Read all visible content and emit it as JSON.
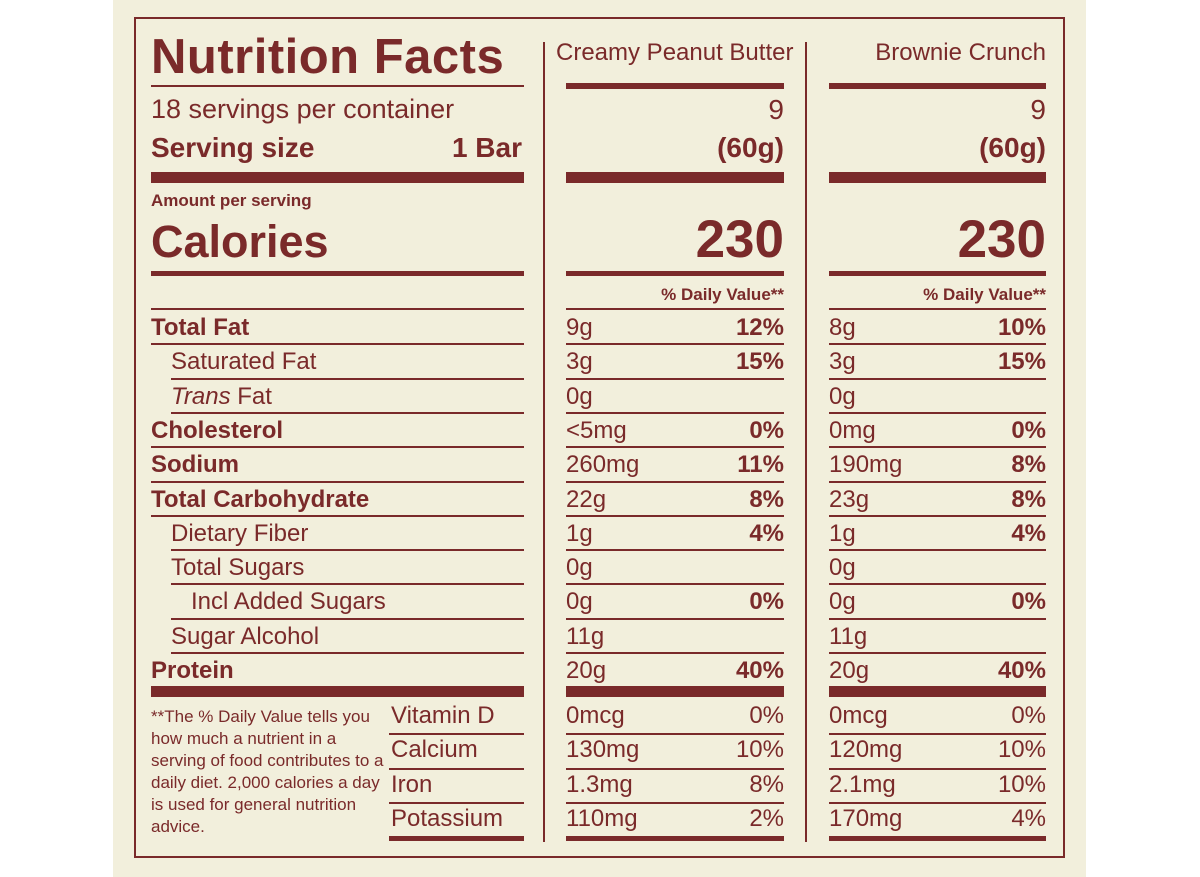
{
  "label": {
    "title": "Nutrition Facts",
    "servings_per_container": "18 servings per container",
    "serving_size_label": "Serving size",
    "serving_size_value": "1 Bar",
    "amount_per_serving": "Amount per serving",
    "calories_label": "Calories",
    "daily_value_header": "% Daily Value**",
    "footnote": "**The % Daily Value tells you how much a nutrient in a serving of food contributes to a daily diet. 2,000 calories a day is used for general nutrition advice."
  },
  "products": [
    {
      "name": "Creamy Peanut Butter",
      "servings": "9",
      "serving_grams": "(60g)",
      "calories": "230"
    },
    {
      "name": "Brownie Crunch",
      "servings": "9",
      "serving_grams": "(60g)",
      "calories": "230"
    }
  ],
  "nutrients": [
    {
      "label": "Total Fat",
      "values": [
        {
          "amount": "9g",
          "dv": "12%"
        },
        {
          "amount": "8g",
          "dv": "10%"
        }
      ]
    },
    {
      "label": "Saturated Fat",
      "values": [
        {
          "amount": "3g",
          "dv": "15%"
        },
        {
          "amount": "3g",
          "dv": "15%"
        }
      ]
    },
    {
      "label_italic": "Trans",
      "label": " Fat",
      "values": [
        {
          "amount": "0g",
          "dv": ""
        },
        {
          "amount": "0g",
          "dv": ""
        }
      ]
    },
    {
      "label": "Cholesterol",
      "values": [
        {
          "amount": "<5mg",
          "dv": "0%"
        },
        {
          "amount": "0mg",
          "dv": "0%"
        }
      ]
    },
    {
      "label": "Sodium",
      "values": [
        {
          "amount": "260mg",
          "dv": "11%"
        },
        {
          "amount": "190mg",
          "dv": "8%"
        }
      ]
    },
    {
      "label": "Total Carbohydrate",
      "values": [
        {
          "amount": "22g",
          "dv": "8%"
        },
        {
          "amount": "23g",
          "dv": "8%"
        }
      ]
    },
    {
      "label": "Dietary Fiber",
      "values": [
        {
          "amount": "1g",
          "dv": "4%"
        },
        {
          "amount": "1g",
          "dv": "4%"
        }
      ]
    },
    {
      "label": "Total Sugars",
      "values": [
        {
          "amount": "0g",
          "dv": ""
        },
        {
          "amount": "0g",
          "dv": ""
        }
      ]
    },
    {
      "label": "Incl Added Sugars",
      "values": [
        {
          "amount": "0g",
          "dv": "0%"
        },
        {
          "amount": "0g",
          "dv": "0%"
        }
      ]
    },
    {
      "label": "Sugar Alcohol",
      "values": [
        {
          "amount": "11g",
          "dv": ""
        },
        {
          "amount": "11g",
          "dv": ""
        }
      ]
    },
    {
      "label": "Protein",
      "values": [
        {
          "amount": "20g",
          "dv": "40%"
        },
        {
          "amount": "20g",
          "dv": "40%"
        }
      ]
    }
  ],
  "micronutrients": [
    {
      "label": "Vitamin D",
      "values": [
        {
          "amount": "0mcg",
          "dv": "0%"
        },
        {
          "amount": "0mcg",
          "dv": "0%"
        }
      ]
    },
    {
      "label": "Calcium",
      "values": [
        {
          "amount": "130mg",
          "dv": "10%"
        },
        {
          "amount": "120mg",
          "dv": "10%"
        }
      ]
    },
    {
      "label": "Iron",
      "values": [
        {
          "amount": "1.3mg",
          "dv": "8%"
        },
        {
          "amount": "2.1mg",
          "dv": "10%"
        }
      ]
    },
    {
      "label": "Potassium",
      "values": [
        {
          "amount": "110mg",
          "dv": "2%"
        },
        {
          "amount": "170mg",
          "dv": "4%"
        }
      ]
    }
  ]
}
